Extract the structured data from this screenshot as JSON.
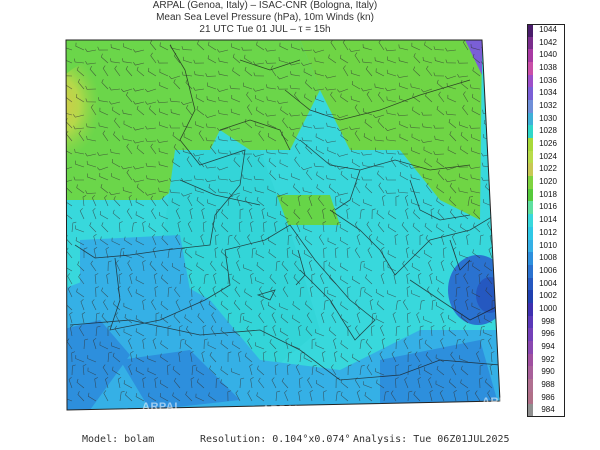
{
  "header": {
    "line1": "ARPAL (Genoa, Italy)  –  ISAC-CNR (Bologna, Italy)",
    "line2": "Mean Sea Level Pressure (hPa), 10m Winds (kn)",
    "line3": "21 UTC Tue 01 JUL  –  τ = 15h"
  },
  "colorbar": {
    "levels": [
      "1044",
      "1042",
      "1040",
      "1038",
      "1036",
      "1034",
      "1032",
      "1030",
      "1028",
      "1026",
      "1024",
      "1022",
      "1020",
      "1018",
      "1016",
      "1014",
      "1012",
      "1010",
      "1008",
      "1006",
      "1004",
      "1002",
      "1000",
      "998",
      "996",
      "994",
      "992",
      "990",
      "988",
      "986",
      "984"
    ],
    "colors": [
      "#4a1d6b",
      "#7a2d8c",
      "#a83aa3",
      "#c94fa8",
      "#9d4fc9",
      "#7a5fd6",
      "#6f8fd9",
      "#3fb0d8",
      "#2fd7c9",
      "#a8d93a",
      "#b9dc4a",
      "#c8c854",
      "#7fd33f",
      "#56ca3c",
      "#5fe0a0",
      "#38d8dc",
      "#2fc8e6",
      "#35b0e6",
      "#2d8fdd",
      "#2a72d0",
      "#2558c0",
      "#2040b0",
      "#3e30b0",
      "#5a38b8",
      "#7440b8",
      "#8a48b0",
      "#a050a0",
      "#a8609a",
      "#b07090",
      "#b07088",
      "#909090"
    ]
  },
  "watermarks": [
    "ARPAL",
    "ARPAL",
    "ARPAL",
    "ARPAL"
  ],
  "footer": {
    "model": "Model: bolam",
    "resolution": "Resolution: 0.104°x0.074°",
    "analysis": "Analysis: Tue 06Z01JUL2025"
  }
}
